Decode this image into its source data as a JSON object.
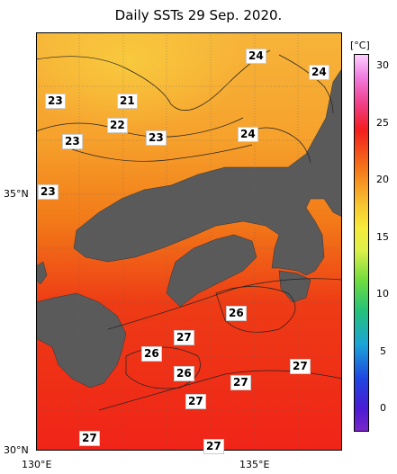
{
  "title": "Daily SSTs 29 Sep. 2020.",
  "map": {
    "lon_range": [
      130,
      137
    ],
    "lat_range": [
      30,
      37
    ],
    "x_ticks": [
      "130°E",
      "135°E"
    ],
    "y_ticks": [
      "35°N",
      "30°N"
    ],
    "land_color": "#5a5a5a",
    "grid": true
  },
  "colorbar": {
    "unit": "[°C]",
    "ticks": [
      "30",
      "25",
      "20",
      "15",
      "10",
      "5",
      "0"
    ],
    "range": [
      -2,
      31
    ]
  },
  "contour_labels": [
    "24",
    "24",
    "23",
    "21",
    "22",
    "23",
    "23",
    "24",
    "23",
    "26",
    "27",
    "26",
    "26",
    "27",
    "27",
    "27",
    "27",
    "27"
  ]
}
